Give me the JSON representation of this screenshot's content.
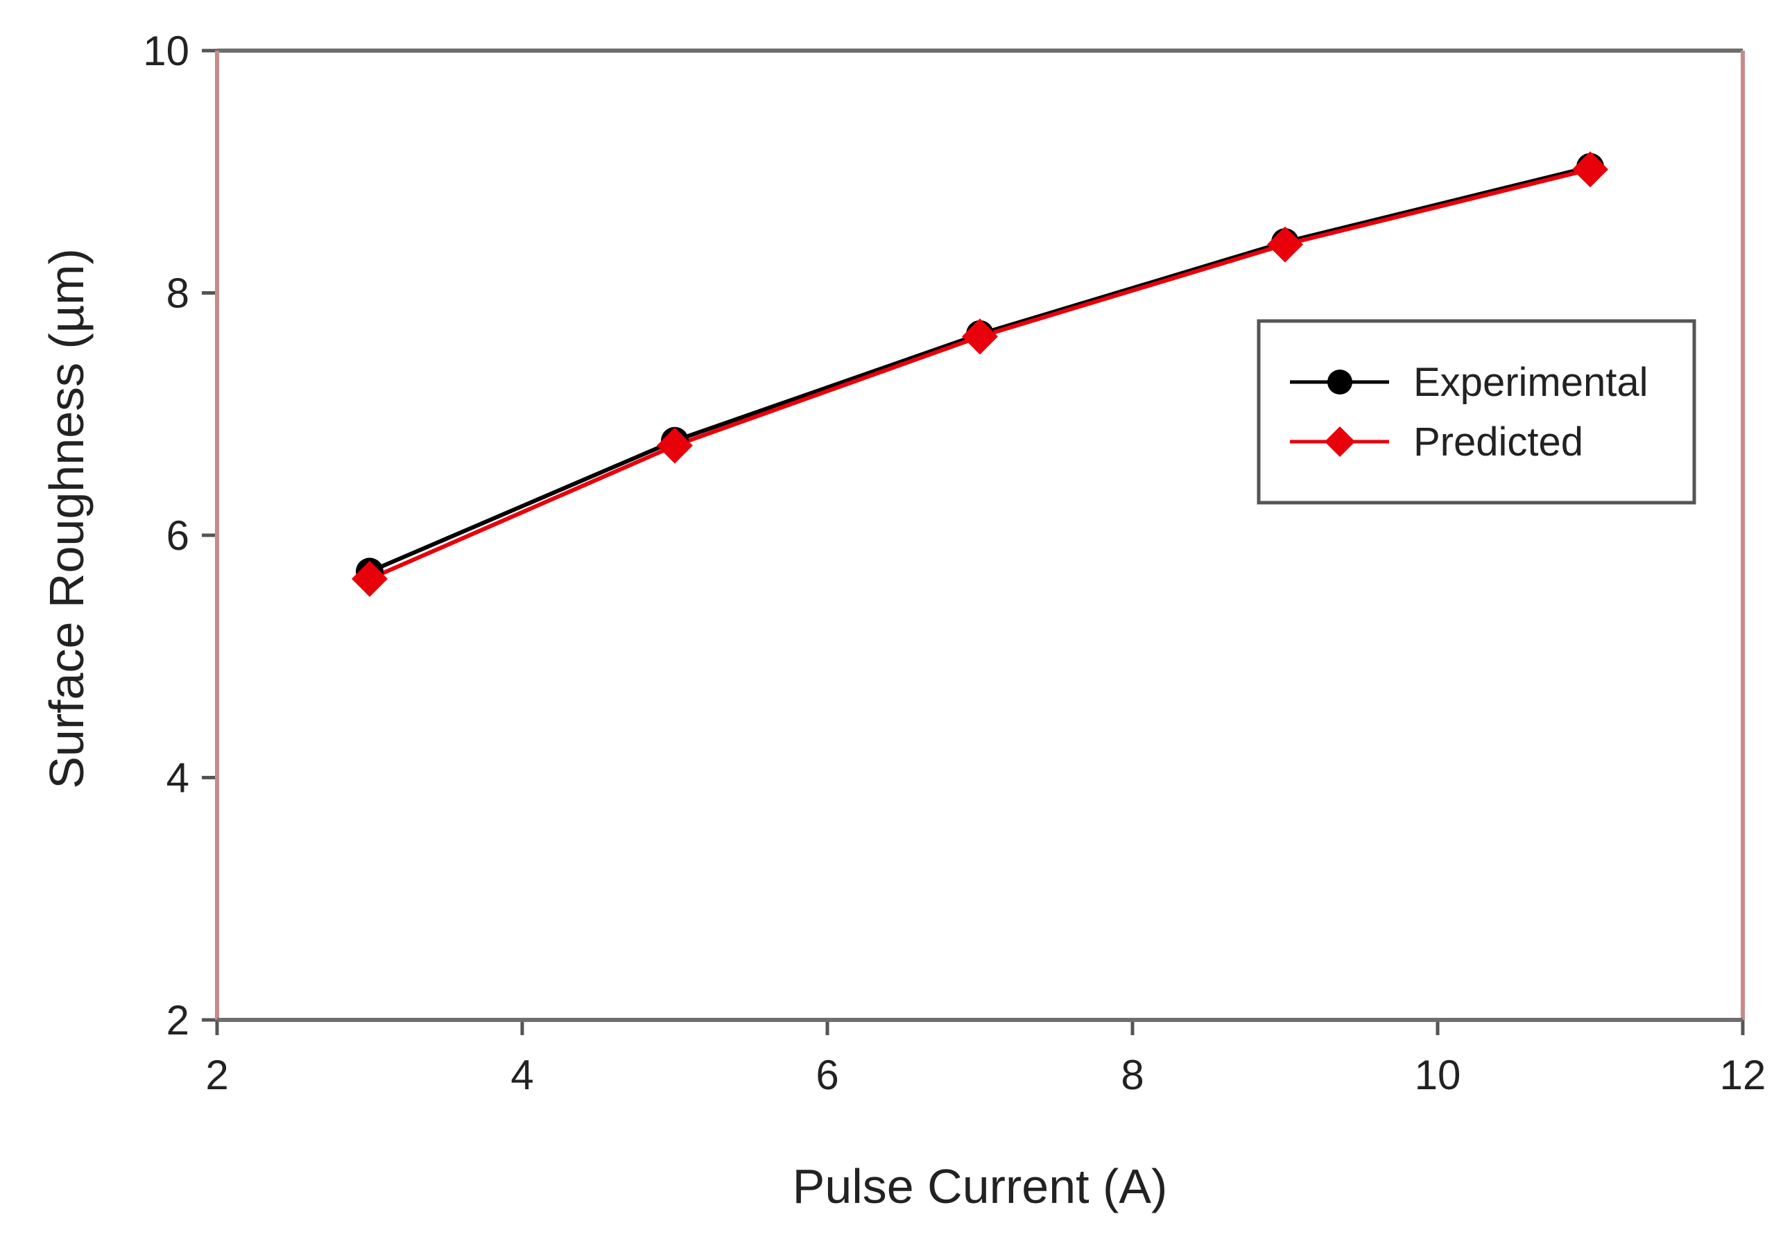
{
  "chart_data": {
    "type": "line",
    "title": "",
    "xlabel": "Pulse Current (A)",
    "ylabel": "Surface Roughness (µm)",
    "xlim": [
      2,
      12
    ],
    "ylim": [
      2,
      10
    ],
    "xticks": [
      2,
      4,
      6,
      8,
      10,
      12
    ],
    "yticks": [
      2,
      4,
      6,
      8,
      10
    ],
    "grid": false,
    "legend_position": "upper-right",
    "series": [
      {
        "name": "Experimental",
        "color": "#000000",
        "marker": "circle",
        "x": [
          3,
          5,
          7,
          9,
          11
        ],
        "y": [
          5.7,
          6.78,
          7.66,
          8.42,
          9.04
        ]
      },
      {
        "name": "Predicted",
        "color": "#e8000b",
        "marker": "diamond",
        "x": [
          3,
          5,
          7,
          9,
          11
        ],
        "y": [
          5.64,
          6.74,
          7.64,
          8.4,
          9.02
        ]
      }
    ]
  }
}
